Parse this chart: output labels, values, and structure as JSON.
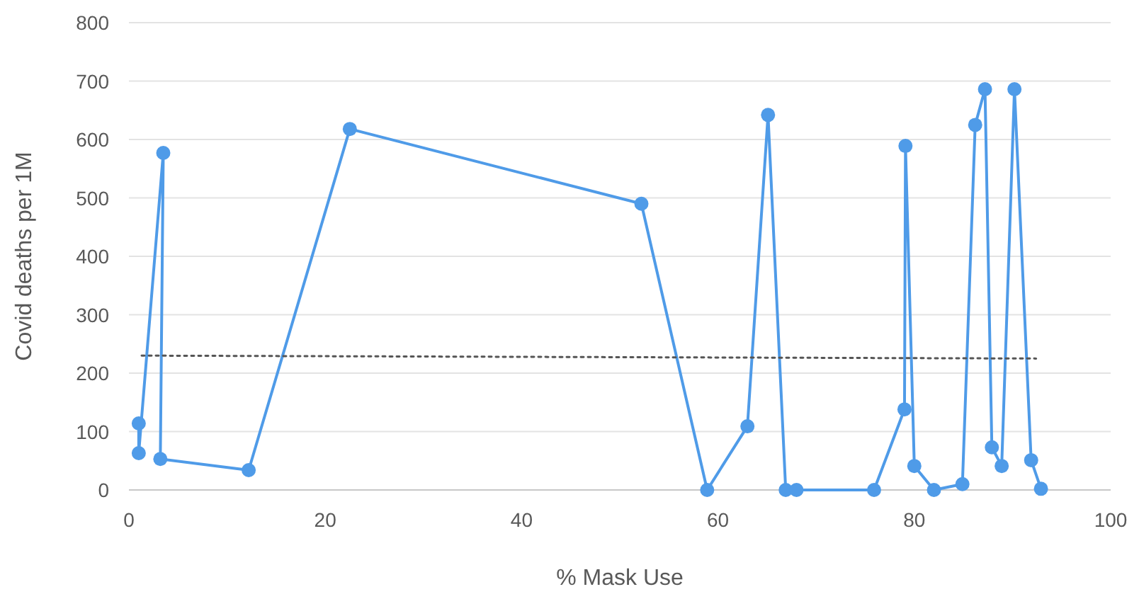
{
  "chart_data": {
    "type": "line",
    "xlabel": "% Mask Use",
    "ylabel": "Covid deaths per 1M",
    "xlim": [
      0,
      100
    ],
    "xticks": [
      0,
      20,
      40,
      60,
      80,
      100
    ],
    "ylim": [
      0,
      800
    ],
    "yticks": [
      0,
      100,
      200,
      300,
      400,
      500,
      600,
      700,
      800
    ],
    "grid": "y",
    "series": [
      {
        "color": "#4f9be8",
        "marker": "circle",
        "line_style": "solid",
        "x": [
          1,
          1,
          3.5,
          3.2,
          12.2,
          22.5,
          52.2,
          58.9,
          63,
          65.1,
          66.9,
          68,
          75.9,
          79,
          79.1,
          80,
          82,
          84.9,
          86.2,
          87.2,
          87.9,
          88.9,
          90.2,
          91.9,
          92.9
        ],
        "values": [
          114,
          63,
          577,
          53,
          34,
          618,
          490,
          0,
          109,
          642,
          0,
          0,
          0,
          138,
          589,
          41,
          0,
          10,
          625,
          686,
          73,
          41,
          686,
          51,
          2
        ]
      },
      {
        "color": "#555555",
        "marker": "none",
        "line_style": "dotted",
        "x": [
          1.3,
          92.4
        ],
        "values": [
          230,
          225
        ]
      }
    ]
  }
}
